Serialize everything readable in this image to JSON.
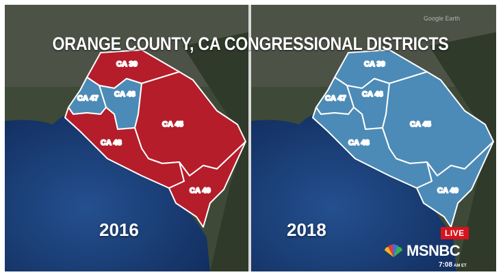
{
  "title": "ORANGE COUNTY, CA CONGRESSIONAL DISTRICTS",
  "watermark": "Google Earth",
  "colors": {
    "republican": "#b51d2a",
    "democrat": "#4c8bb7",
    "ocean": "#1b3d75",
    "land": "#3b4635"
  },
  "panels": [
    {
      "year": "2016",
      "districts": [
        {
          "id": "CA 39",
          "party_color": "republican"
        },
        {
          "id": "CA 46",
          "party_color": "democrat"
        },
        {
          "id": "CA 47",
          "party_color": "democrat"
        },
        {
          "id": "CA 45",
          "party_color": "republican"
        },
        {
          "id": "CA 48",
          "party_color": "republican"
        },
        {
          "id": "CA 49",
          "party_color": "republican"
        }
      ]
    },
    {
      "year": "2018",
      "districts": [
        {
          "id": "CA 39",
          "party_color": "democrat"
        },
        {
          "id": "CA 46",
          "party_color": "democrat"
        },
        {
          "id": "CA 47",
          "party_color": "democrat"
        },
        {
          "id": "CA 45",
          "party_color": "democrat"
        },
        {
          "id": "CA 48",
          "party_color": "democrat"
        },
        {
          "id": "CA 49",
          "party_color": "democrat"
        }
      ]
    }
  ],
  "broadcast": {
    "live_badge": "LIVE",
    "network": "MSNBC",
    "time": "7:08",
    "timezone": "AM ET",
    "peacock_icon": "nbc-peacock-icon"
  }
}
